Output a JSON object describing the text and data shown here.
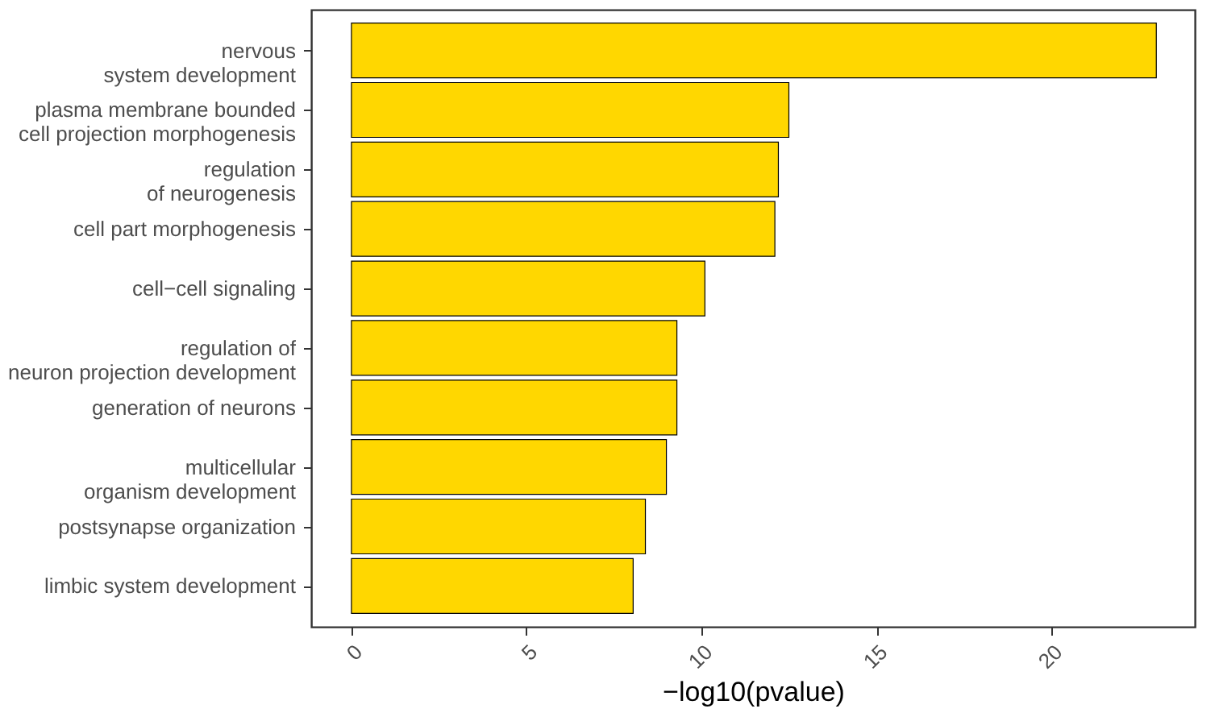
{
  "chart_data": {
    "type": "bar",
    "orientation": "horizontal",
    "xlabel": "−log10(pvalue)",
    "categories": [
      "nervous\nsystem development",
      "plasma membrane bounded\ncell projection morphogenesis",
      "regulation\nof neurogenesis",
      "cell part morphogenesis",
      "cell−cell signaling",
      "regulation of\nneuron projection development",
      "generation of neurons",
      "multicellular\norganism development",
      "postsynapse organization",
      "limbic system development"
    ],
    "values": [
      23.0,
      12.5,
      12.2,
      12.1,
      10.1,
      9.3,
      9.3,
      9.0,
      8.4,
      8.05
    ],
    "color": "#ffd700",
    "xlim": [
      -1.15,
      24.1
    ],
    "xticks": [
      0,
      5,
      10,
      15,
      20
    ],
    "grid": false
  }
}
